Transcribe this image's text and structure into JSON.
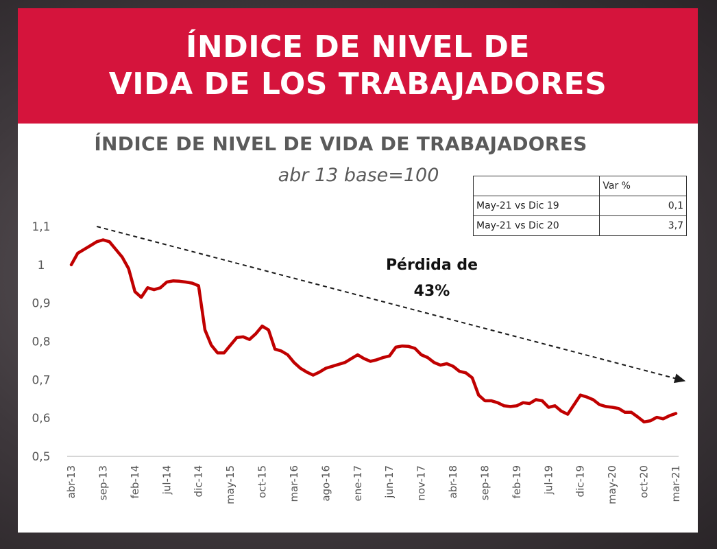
{
  "banner": {
    "line1": "ÍNDICE DE NIVEL DE",
    "line2": "VIDA DE LOS TRABAJADORES"
  },
  "colors": {
    "banner": "#d5143c",
    "series_line": "#c00000",
    "arrow": "#1a1a1a",
    "axis_text": "#555555"
  },
  "var_table": {
    "header": "Var %",
    "rows": [
      {
        "label": "May-21 vs Dic 19",
        "value": "0,1"
      },
      {
        "label": "May-21 vs Dic 20",
        "value": "3,7"
      }
    ]
  },
  "annotation": {
    "line1": "Pérdida de",
    "line2": "43%"
  },
  "chart_data": {
    "type": "line",
    "title": "ÍNDICE DE NIVEL DE VIDA DE TRABAJADORES",
    "subtitle": "abr 13 base=100",
    "xlabel": "",
    "ylabel": "",
    "ylim": [
      0.5,
      1.1
    ],
    "yticks": [
      "1,1",
      "1",
      "0,9",
      "0,8",
      "0,7",
      "0,6",
      "0,5"
    ],
    "ytick_values": [
      1.1,
      1.0,
      0.9,
      0.8,
      0.7,
      0.6,
      0.5
    ],
    "xtick_labels": [
      "abr-13",
      "sep-13",
      "feb-14",
      "jul-14",
      "dic-14",
      "may-15",
      "oct-15",
      "mar-16",
      "ago-16",
      "ene-17",
      "jun-17",
      "nov-17",
      "abr-18",
      "sep-18",
      "feb-19",
      "jul-19",
      "dic-19",
      "may-20",
      "oct-20",
      "mar-21"
    ],
    "grid": false,
    "legend": "none",
    "trend_arrow": {
      "from": {
        "x": "ago-13",
        "y": 1.1
      },
      "to": {
        "x": "may-21",
        "y": 0.7
      }
    },
    "series": [
      {
        "values": [
          1.0,
          1.03,
          1.04,
          1.05,
          1.06,
          1.065,
          1.06,
          1.04,
          1.02,
          0.99,
          0.93,
          0.915,
          0.94,
          0.935,
          0.94,
          0.955,
          0.958,
          0.957,
          0.955,
          0.952,
          0.945,
          0.83,
          0.79,
          0.77,
          0.77,
          0.79,
          0.81,
          0.812,
          0.805,
          0.82,
          0.84,
          0.83,
          0.78,
          0.775,
          0.765,
          0.745,
          0.73,
          0.72,
          0.712,
          0.72,
          0.73,
          0.735,
          0.74,
          0.745,
          0.755,
          0.765,
          0.755,
          0.748,
          0.752,
          0.758,
          0.762,
          0.785,
          0.788,
          0.787,
          0.782,
          0.765,
          0.758,
          0.745,
          0.738,
          0.742,
          0.735,
          0.722,
          0.718,
          0.705,
          0.66,
          0.645,
          0.645,
          0.64,
          0.632,
          0.63,
          0.632,
          0.64,
          0.638,
          0.648,
          0.645,
          0.628,
          0.632,
          0.618,
          0.61,
          0.635,
          0.66,
          0.655,
          0.648,
          0.635,
          0.63,
          0.628,
          0.625,
          0.615,
          0.615,
          0.603,
          0.59,
          0.593,
          0.602,
          0.598,
          0.606,
          0.612
        ]
      }
    ]
  }
}
